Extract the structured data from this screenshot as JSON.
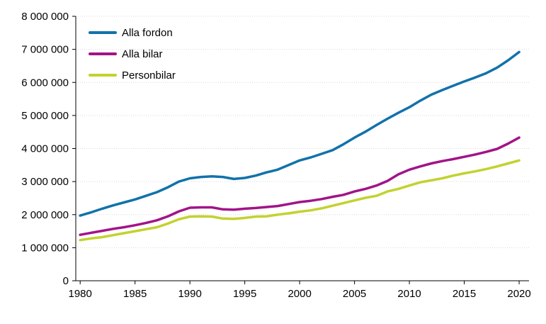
{
  "chart_data": {
    "type": "line",
    "x": [
      1980,
      1981,
      1982,
      1983,
      1984,
      1985,
      1986,
      1987,
      1988,
      1989,
      1990,
      1991,
      1992,
      1993,
      1994,
      1995,
      1996,
      1997,
      1998,
      1999,
      2000,
      2001,
      2002,
      2003,
      2004,
      2005,
      2006,
      2007,
      2008,
      2009,
      2010,
      2011,
      2012,
      2013,
      2014,
      2015,
      2016,
      2017,
      2018,
      2019,
      2020
    ],
    "series": [
      {
        "name": "Alla fordon",
        "color": "#1172aa",
        "values": [
          1970000,
          2070000,
          2180000,
          2280000,
          2370000,
          2460000,
          2570000,
          2680000,
          2830000,
          3000000,
          3100000,
          3140000,
          3160000,
          3140000,
          3080000,
          3110000,
          3180000,
          3280000,
          3360000,
          3500000,
          3640000,
          3730000,
          3840000,
          3950000,
          4130000,
          4330000,
          4510000,
          4710000,
          4900000,
          5080000,
          5250000,
          5450000,
          5630000,
          5770000,
          5900000,
          6030000,
          6150000,
          6280000,
          6450000,
          6670000,
          6920000
        ]
      },
      {
        "name": "Alla bilar",
        "color": "#a21488",
        "values": [
          1390000,
          1450000,
          1510000,
          1570000,
          1620000,
          1680000,
          1750000,
          1830000,
          1950000,
          2100000,
          2210000,
          2220000,
          2220000,
          2160000,
          2150000,
          2180000,
          2200000,
          2230000,
          2260000,
          2320000,
          2380000,
          2420000,
          2470000,
          2540000,
          2600000,
          2700000,
          2780000,
          2880000,
          3020000,
          3220000,
          3360000,
          3460000,
          3550000,
          3620000,
          3680000,
          3750000,
          3820000,
          3900000,
          3990000,
          4150000,
          4330000
        ]
      },
      {
        "name": "Personbilar",
        "color": "#c2d22f",
        "values": [
          1230000,
          1280000,
          1320000,
          1380000,
          1440000,
          1500000,
          1560000,
          1620000,
          1730000,
          1860000,
          1940000,
          1950000,
          1940000,
          1880000,
          1870000,
          1900000,
          1940000,
          1950000,
          2000000,
          2040000,
          2090000,
          2130000,
          2190000,
          2270000,
          2350000,
          2430000,
          2510000,
          2570000,
          2700000,
          2780000,
          2880000,
          2980000,
          3040000,
          3100000,
          3180000,
          3250000,
          3310000,
          3380000,
          3460000,
          3550000,
          3640000
        ]
      }
    ],
    "xlabel": "",
    "ylabel": "",
    "xlim": [
      1980,
      2020
    ],
    "ylim": [
      0,
      8000000
    ],
    "xticks": [
      1980,
      1985,
      1990,
      1995,
      2000,
      2005,
      2010,
      2015,
      2020
    ],
    "ytick_step": 1000000,
    "ytick_labels": [
      "0",
      "1 000 000",
      "2 000 000",
      "3 000 000",
      "4 000 000",
      "5 000 000",
      "6 000 000",
      "7 000 000",
      "8 000 000"
    ],
    "grid": "horizontal-dotted",
    "grid_color": "#d9d9d9",
    "axis_color": "#000000",
    "text_color": "#000000",
    "legend_position": "top-left-inside",
    "line_width": 3.5
  }
}
